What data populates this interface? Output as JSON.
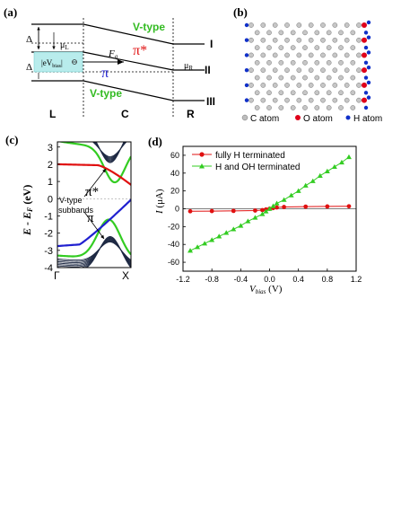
{
  "panel_a": {
    "label": "(a)",
    "v_type_top": "V-type",
    "v_type_bottom": "V-type",
    "pi_star": "π*",
    "pi": "π",
    "fq": "F",
    "fq_sub": "q",
    "mu_l": "μ",
    "mu_l_sub": "L",
    "mu_r": "μ",
    "mu_r_sub": "R",
    "delta_top": "Δ",
    "delta_mid": "Δ",
    "ebias": "|eV",
    "ebias_sub": "bias",
    "ebias_end": "|",
    "level_I": "I",
    "level_II": "II",
    "level_III": "III",
    "region_L": "L",
    "region_C": "C",
    "region_R": "R"
  },
  "panel_b": {
    "label": "(b)",
    "legend": [
      {
        "label": "C atom",
        "color": "#bdbdbd"
      },
      {
        "label": "O atom",
        "color": "#e0001a"
      },
      {
        "label": "H atom",
        "color": "#1030c8"
      }
    ]
  },
  "panel_c": {
    "label": "(c)",
    "ylabel": "E - E",
    "ylabel_sub": "F",
    "ylabel_unit": " (eV)",
    "x_left": "Γ",
    "x_right": "X",
    "yticks": [
      "3",
      "2",
      "1",
      "0",
      "-1",
      "-2",
      "-3",
      "-4"
    ],
    "annot_pi_star": "π*",
    "annot_pi": "π",
    "annot_vtype_1": "V-type",
    "annot_vtype_2": "subbands"
  },
  "chart_data": {
    "type": "line",
    "panel_label": "(d)",
    "xlabel": "V",
    "xlabel_sub": "bias",
    "xlabel_unit": " (V)",
    "ylabel": "I",
    "ylabel_unit": " (μA)",
    "xlim": [
      -1.2,
      1.2
    ],
    "ylim": [
      -70,
      70
    ],
    "xticks": [
      -1.2,
      -0.8,
      -0.4,
      0.0,
      0.4,
      0.8,
      1.2
    ],
    "xtick_labels": [
      "-1.2",
      "-0.8",
      "-0.4",
      "0.0",
      "0.4",
      "0.8",
      "1.2"
    ],
    "yticks": [
      -60,
      -40,
      -20,
      0,
      20,
      40,
      60
    ],
    "legend_position": "top-left",
    "series": [
      {
        "name": "fully H terminated",
        "color": "#e01010",
        "marker": "circle",
        "x": [
          -1.1,
          -0.8,
          -0.5,
          -0.2,
          -0.1,
          -0.05,
          0.0,
          0.05,
          0.1,
          0.2,
          0.5,
          0.8,
          1.1
        ],
        "y": [
          -2.8,
          -2.6,
          -2.4,
          -2.0,
          -1.5,
          -0.8,
          0.0,
          0.8,
          1.5,
          2.0,
          2.4,
          2.6,
          2.8
        ]
      },
      {
        "name": "H and OH terminated",
        "color": "#33cc22",
        "marker": "triangle",
        "x": [
          -1.1,
          -1.0,
          -0.9,
          -0.8,
          -0.7,
          -0.6,
          -0.5,
          -0.4,
          -0.3,
          -0.2,
          -0.1,
          -0.05,
          0.0,
          0.05,
          0.1,
          0.2,
          0.3,
          0.4,
          0.5,
          0.6,
          0.7,
          0.8,
          0.9,
          1.0,
          1.1
        ],
        "y": [
          -47,
          -43,
          -39,
          -35,
          -31,
          -27,
          -23,
          -19,
          -14,
          -10,
          -6,
          -3,
          0,
          3,
          6,
          10,
          15,
          20,
          26,
          31,
          37,
          42,
          47,
          52,
          58
        ]
      }
    ]
  }
}
